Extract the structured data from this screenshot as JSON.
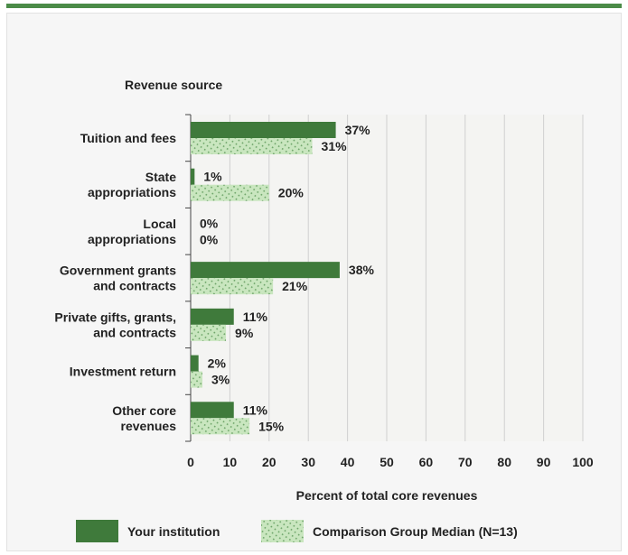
{
  "colors": {
    "top_rule": "#4b8b48",
    "institution": "#3f7a3b",
    "comparison": "#c9e6bf",
    "comparison_hatch": "#6fa56a",
    "plot_bg": "#f4f4f2",
    "grid": "#d0d0d0"
  },
  "chart_data": {
    "type": "bar",
    "orientation": "horizontal",
    "title": "Revenue source",
    "xlabel": "Percent of total core revenues",
    "xlim": [
      0,
      100
    ],
    "xticks": [
      0,
      10,
      20,
      30,
      40,
      50,
      60,
      70,
      80,
      90,
      100
    ],
    "grid": true,
    "legend_position": "bottom",
    "categories": [
      [
        "Tuition and fees"
      ],
      [
        "State",
        "appropriations"
      ],
      [
        "Local",
        "appropriations"
      ],
      [
        "Government grants",
        "and contracts"
      ],
      [
        "Private gifts, grants,",
        "and contracts"
      ],
      [
        "Investment return"
      ],
      [
        "Other core",
        "revenues"
      ]
    ],
    "series": [
      {
        "name": "Your institution",
        "values": [
          37,
          1,
          0,
          38,
          11,
          2,
          11
        ],
        "labels": [
          "37%",
          "1%",
          "0%",
          "38%",
          "11%",
          "2%",
          "11%"
        ]
      },
      {
        "name": "Comparison Group Median (N=13)",
        "values": [
          31,
          20,
          0,
          21,
          9,
          3,
          15
        ],
        "labels": [
          "31%",
          "20%",
          "0%",
          "21%",
          "9%",
          "3%",
          "15%"
        ]
      }
    ]
  }
}
